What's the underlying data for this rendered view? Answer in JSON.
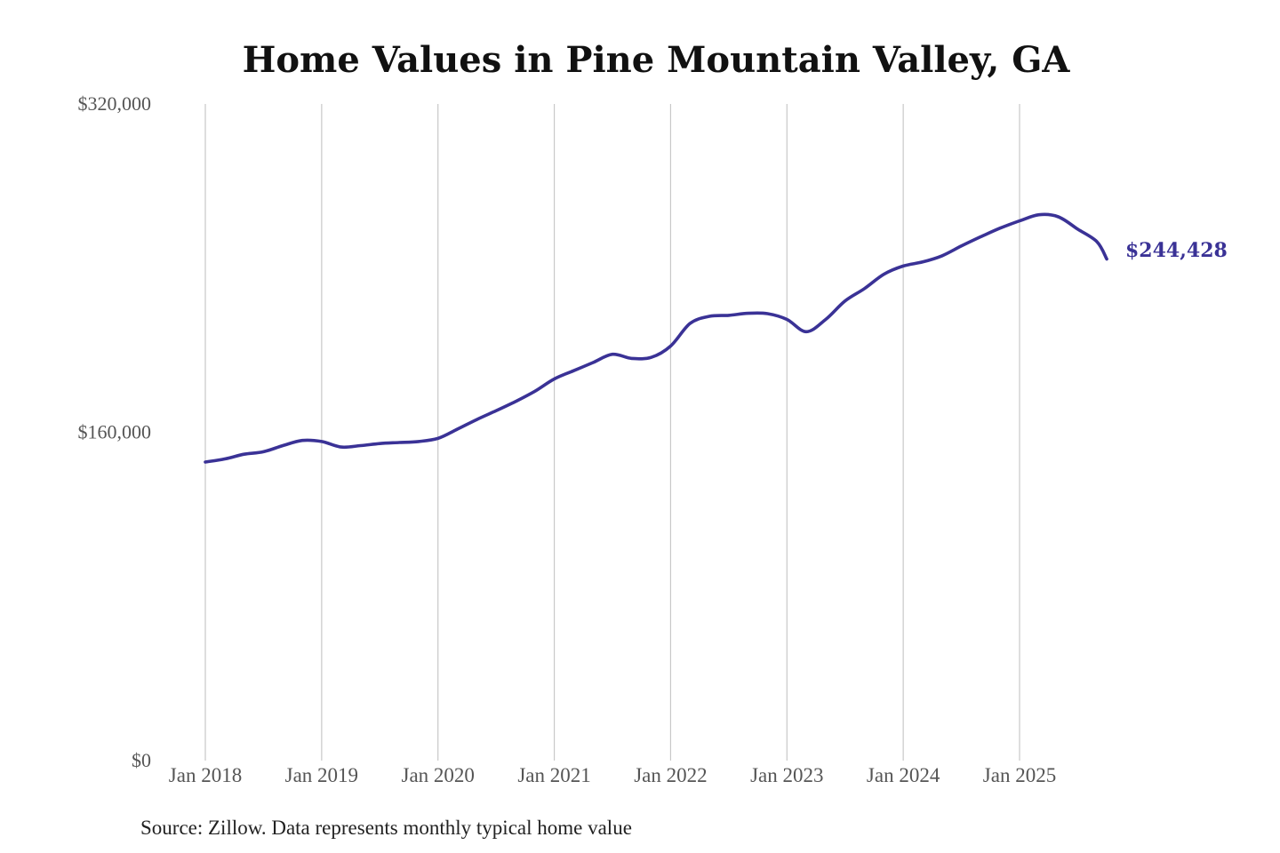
{
  "chart_data": {
    "type": "line",
    "title": "Home Values in Pine Mountain Valley, GA",
    "xlabel": "",
    "ylabel": "",
    "ylim": [
      0,
      320000
    ],
    "yticks": [
      {
        "value": 0,
        "label": "$0"
      },
      {
        "value": 160000,
        "label": "$160,000"
      },
      {
        "value": 320000,
        "label": "$320,000"
      }
    ],
    "xlim": [
      "2018-01",
      "2025-10"
    ],
    "xticks": [
      {
        "x": "2018-01",
        "label": "Jan 2018"
      },
      {
        "x": "2019-01",
        "label": "Jan 2019"
      },
      {
        "x": "2020-01",
        "label": "Jan 2020"
      },
      {
        "x": "2021-01",
        "label": "Jan 2021"
      },
      {
        "x": "2022-01",
        "label": "Jan 2022"
      },
      {
        "x": "2023-01",
        "label": "Jan 2023"
      },
      {
        "x": "2024-01",
        "label": "Jan 2024"
      },
      {
        "x": "2025-01",
        "label": "Jan 2025"
      }
    ],
    "grid": "vertical",
    "line_color": "#3a3296",
    "series": [
      {
        "x": [
          "2018-01",
          "2018-03",
          "2018-05",
          "2018-07",
          "2018-09",
          "2018-11",
          "2019-01",
          "2019-03",
          "2019-05",
          "2019-07",
          "2019-09",
          "2019-11",
          "2020-01",
          "2020-03",
          "2020-05",
          "2020-07",
          "2020-09",
          "2020-11",
          "2021-01",
          "2021-03",
          "2021-05",
          "2021-07",
          "2021-09",
          "2021-11",
          "2022-01",
          "2022-03",
          "2022-05",
          "2022-07",
          "2022-09",
          "2022-11",
          "2023-01",
          "2023-03",
          "2023-05",
          "2023-07",
          "2023-09",
          "2023-11",
          "2024-01",
          "2024-03",
          "2024-05",
          "2024-07",
          "2024-09",
          "2024-11",
          "2025-01",
          "2025-03",
          "2025-05",
          "2025-07",
          "2025-09",
          "2025-10"
        ],
        "values": [
          145500,
          147000,
          149300,
          150500,
          153500,
          156000,
          155500,
          152800,
          153500,
          154500,
          155000,
          155500,
          157000,
          161500,
          166200,
          170500,
          175000,
          180000,
          186000,
          190000,
          194000,
          198000,
          196000,
          196500,
          202000,
          213000,
          216500,
          217000,
          218000,
          217800,
          215000,
          209000,
          215000,
          224000,
          230000,
          237000,
          241000,
          243000,
          246000,
          250800,
          255300,
          259500,
          263000,
          266000,
          265000,
          259000,
          252800,
          244428
        ]
      }
    ],
    "end_label": "$244,428",
    "source": "Source: Zillow. Data represents monthly typical home value"
  }
}
